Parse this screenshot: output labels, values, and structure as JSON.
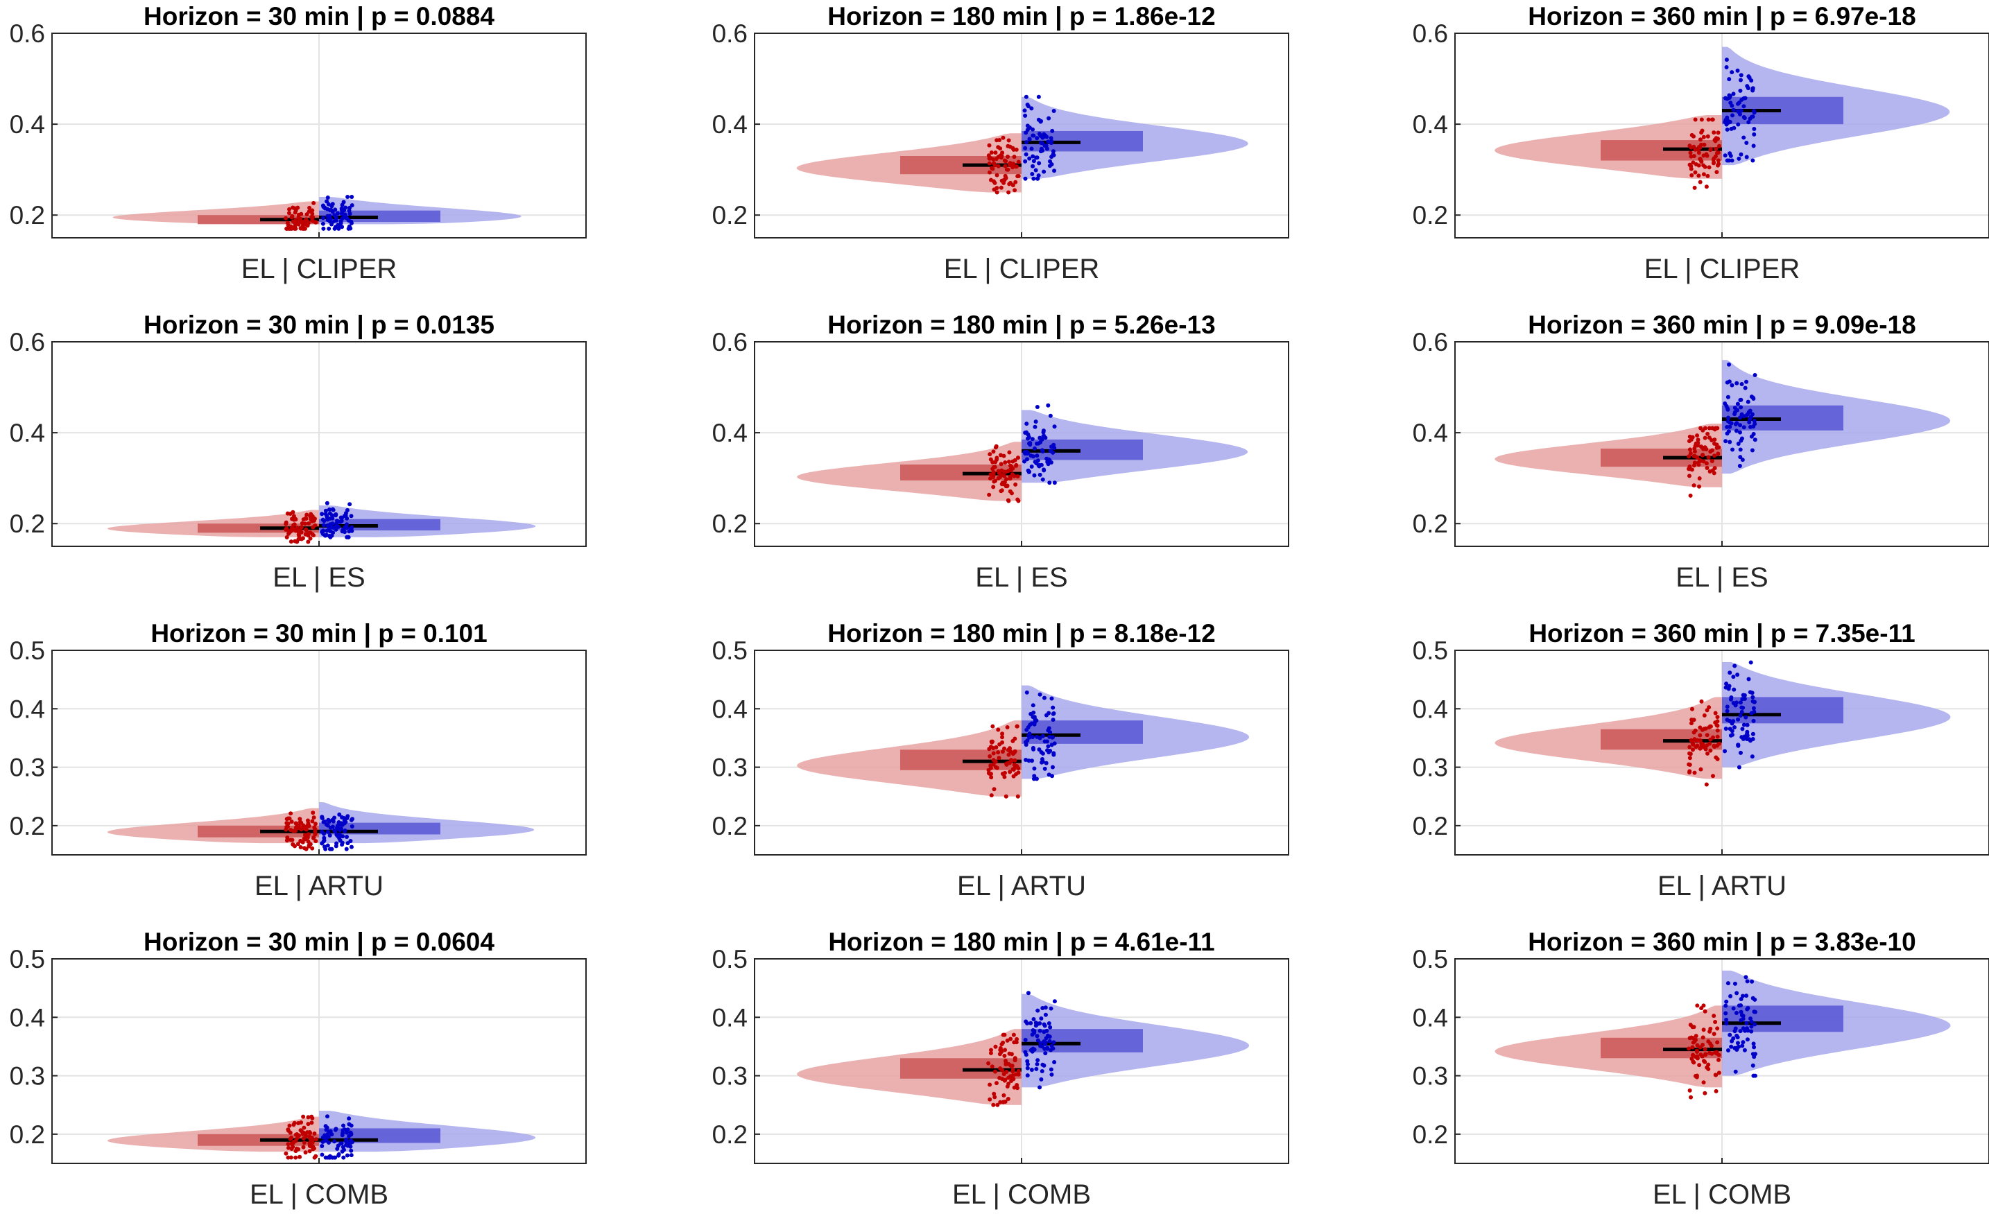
{
  "colors": {
    "el": "#c00000",
    "el_violin": "#e8a3a3",
    "el_box": "#cd5c5c",
    "other": "#0000c8",
    "other_violin": "#a8a8ec",
    "other_box": "#5c5cd6",
    "median": "#000000",
    "grid": "#e3e3e3",
    "axis": "#262626"
  },
  "chart_data": [
    {
      "type": "violin",
      "panel": "r1c1",
      "title": "Horizon = 30 min |  p = 0.0884",
      "xlabel": "EL | CLIPER",
      "ylim": [
        0.15,
        0.6
      ],
      "yticks": [
        0.2,
        0.4,
        0.6
      ],
      "ytick_labels": [
        "0.2",
        "0.4",
        "0.6"
      ],
      "grid": true,
      "series": [
        {
          "name": "EL",
          "side": "left",
          "median": 0.19,
          "q1": 0.18,
          "q3": 0.2,
          "min": 0.17,
          "max": 0.23,
          "kde_min": 0.18,
          "kde_max": 0.23,
          "mode": 0.19
        },
        {
          "name": "CLIPER",
          "side": "right",
          "median": 0.195,
          "q1": 0.185,
          "q3": 0.21,
          "min": 0.17,
          "max": 0.24,
          "kde_min": 0.18,
          "kde_max": 0.24,
          "mode": 0.19
        }
      ]
    },
    {
      "type": "violin",
      "panel": "r1c2",
      "title": "Horizon = 180 min |  p = 1.86e-12",
      "xlabel": "EL | CLIPER",
      "ylim": [
        0.15,
        0.6
      ],
      "yticks": [
        0.2,
        0.4,
        0.6
      ],
      "ytick_labels": [
        "0.2",
        "0.4",
        "0.6"
      ],
      "grid": true,
      "series": [
        {
          "name": "EL",
          "side": "left",
          "median": 0.31,
          "q1": 0.29,
          "q3": 0.33,
          "min": 0.25,
          "max": 0.37,
          "kde_min": 0.25,
          "kde_max": 0.38,
          "mode": 0.3
        },
        {
          "name": "CLIPER",
          "side": "right",
          "median": 0.36,
          "q1": 0.34,
          "q3": 0.385,
          "min": 0.28,
          "max": 0.46,
          "kde_min": 0.28,
          "kde_max": 0.46,
          "mode": 0.355
        }
      ]
    },
    {
      "type": "violin",
      "panel": "r1c3",
      "title": "Horizon = 360 min |  p = 6.97e-18",
      "xlabel": "EL | CLIPER",
      "ylim": [
        0.15,
        0.6
      ],
      "yticks": [
        0.2,
        0.4,
        0.6
      ],
      "ytick_labels": [
        "0.2",
        "0.4",
        "0.6"
      ],
      "grid": true,
      "series": [
        {
          "name": "EL",
          "side": "left",
          "median": 0.345,
          "q1": 0.32,
          "q3": 0.365,
          "min": 0.26,
          "max": 0.41,
          "kde_min": 0.28,
          "kde_max": 0.42,
          "mode": 0.34
        },
        {
          "name": "CLIPER",
          "side": "right",
          "median": 0.43,
          "q1": 0.4,
          "q3": 0.46,
          "min": 0.32,
          "max": 0.6,
          "kde_min": 0.31,
          "kde_max": 0.57,
          "mode": 0.425
        }
      ]
    },
    {
      "type": "violin",
      "panel": "r2c1",
      "title": "Horizon = 30 min |  p = 0.0135",
      "xlabel": "EL | ES",
      "ylim": [
        0.15,
        0.6
      ],
      "yticks": [
        0.2,
        0.4,
        0.6
      ],
      "ytick_labels": [
        "0.2",
        "0.4",
        "0.6"
      ],
      "grid": true,
      "series": [
        {
          "name": "EL",
          "side": "left",
          "median": 0.19,
          "q1": 0.18,
          "q3": 0.2,
          "min": 0.16,
          "max": 0.23,
          "kde_min": 0.17,
          "kde_max": 0.23,
          "mode": 0.185
        },
        {
          "name": "ES",
          "side": "right",
          "median": 0.195,
          "q1": 0.185,
          "q3": 0.21,
          "min": 0.17,
          "max": 0.245,
          "kde_min": 0.17,
          "kde_max": 0.24,
          "mode": 0.19
        }
      ]
    },
    {
      "type": "violin",
      "panel": "r2c2",
      "title": "Horizon = 180 min |  p = 5.26e-13",
      "xlabel": "EL | ES",
      "ylim": [
        0.15,
        0.6
      ],
      "yticks": [
        0.2,
        0.4,
        0.6
      ],
      "ytick_labels": [
        "0.2",
        "0.4",
        "0.6"
      ],
      "grid": true,
      "series": [
        {
          "name": "EL",
          "side": "left",
          "median": 0.31,
          "q1": 0.295,
          "q3": 0.33,
          "min": 0.25,
          "max": 0.37,
          "kde_min": 0.25,
          "kde_max": 0.38,
          "mode": 0.3
        },
        {
          "name": "ES",
          "side": "right",
          "median": 0.36,
          "q1": 0.34,
          "q3": 0.385,
          "min": 0.29,
          "max": 0.46,
          "kde_min": 0.29,
          "kde_max": 0.45,
          "mode": 0.355
        }
      ]
    },
    {
      "type": "violin",
      "panel": "r2c3",
      "title": "Horizon = 360 min |  p = 9.09e-18",
      "xlabel": "EL | ES",
      "ylim": [
        0.15,
        0.6
      ],
      "yticks": [
        0.2,
        0.4,
        0.6
      ],
      "ytick_labels": [
        "0.2",
        "0.4",
        "0.6"
      ],
      "grid": true,
      "series": [
        {
          "name": "EL",
          "side": "left",
          "median": 0.345,
          "q1": 0.325,
          "q3": 0.365,
          "min": 0.26,
          "max": 0.41,
          "kde_min": 0.28,
          "kde_max": 0.42,
          "mode": 0.34
        },
        {
          "name": "ES",
          "side": "right",
          "median": 0.43,
          "q1": 0.405,
          "q3": 0.46,
          "min": 0.32,
          "max": 0.6,
          "kde_min": 0.31,
          "kde_max": 0.56,
          "mode": 0.425
        }
      ]
    },
    {
      "type": "violin",
      "panel": "r3c1",
      "title": "Horizon = 30 min |  p = 0.101",
      "xlabel": "EL | ARTU",
      "ylim": [
        0.15,
        0.5
      ],
      "yticks": [
        0.2,
        0.3,
        0.4,
        0.5
      ],
      "ytick_labels": [
        "0.2",
        "0.3",
        "0.4",
        "0.5"
      ],
      "grid": true,
      "series": [
        {
          "name": "EL",
          "side": "left",
          "median": 0.19,
          "q1": 0.18,
          "q3": 0.2,
          "min": 0.16,
          "max": 0.23,
          "kde_min": 0.17,
          "kde_max": 0.23,
          "mode": 0.185
        },
        {
          "name": "ARTU",
          "side": "right",
          "median": 0.19,
          "q1": 0.185,
          "q3": 0.205,
          "min": 0.16,
          "max": 0.24,
          "kde_min": 0.17,
          "kde_max": 0.24,
          "mode": 0.19
        }
      ]
    },
    {
      "type": "violin",
      "panel": "r3c2",
      "title": "Horizon = 180 min |  p = 8.18e-12",
      "xlabel": "EL | ARTU",
      "ylim": [
        0.15,
        0.5
      ],
      "yticks": [
        0.2,
        0.3,
        0.4,
        0.5
      ],
      "ytick_labels": [
        "0.2",
        "0.3",
        "0.4",
        "0.5"
      ],
      "grid": true,
      "series": [
        {
          "name": "EL",
          "side": "left",
          "median": 0.31,
          "q1": 0.295,
          "q3": 0.33,
          "min": 0.25,
          "max": 0.37,
          "kde_min": 0.25,
          "kde_max": 0.38,
          "mode": 0.3
        },
        {
          "name": "ARTU",
          "side": "right",
          "median": 0.355,
          "q1": 0.34,
          "q3": 0.38,
          "min": 0.28,
          "max": 0.44,
          "kde_min": 0.28,
          "kde_max": 0.44,
          "mode": 0.35
        }
      ]
    },
    {
      "type": "violin",
      "panel": "r3c3",
      "title": "Horizon = 360 min |  p = 7.35e-11",
      "xlabel": "EL | ARTU",
      "ylim": [
        0.15,
        0.5
      ],
      "yticks": [
        0.2,
        0.3,
        0.4,
        0.5
      ],
      "ytick_labels": [
        "0.2",
        "0.3",
        "0.4",
        "0.5"
      ],
      "grid": true,
      "series": [
        {
          "name": "EL",
          "side": "left",
          "median": 0.345,
          "q1": 0.33,
          "q3": 0.365,
          "min": 0.26,
          "max": 0.42,
          "kde_min": 0.28,
          "kde_max": 0.42,
          "mode": 0.34
        },
        {
          "name": "ARTU",
          "side": "right",
          "median": 0.39,
          "q1": 0.375,
          "q3": 0.42,
          "min": 0.3,
          "max": 0.48,
          "kde_min": 0.3,
          "kde_max": 0.48,
          "mode": 0.385
        }
      ]
    },
    {
      "type": "violin",
      "panel": "r4c1",
      "title": "Horizon = 30 min |  p = 0.0604",
      "xlabel": "EL | COMB",
      "ylim": [
        0.15,
        0.5
      ],
      "yticks": [
        0.2,
        0.3,
        0.4,
        0.5
      ],
      "ytick_labels": [
        "0.2",
        "0.3",
        "0.4",
        "0.5"
      ],
      "grid": true,
      "series": [
        {
          "name": "EL",
          "side": "left",
          "median": 0.19,
          "q1": 0.18,
          "q3": 0.2,
          "min": 0.16,
          "max": 0.23,
          "kde_min": 0.17,
          "kde_max": 0.23,
          "mode": 0.185
        },
        {
          "name": "COMB",
          "side": "right",
          "median": 0.19,
          "q1": 0.185,
          "q3": 0.21,
          "min": 0.16,
          "max": 0.24,
          "kde_min": 0.17,
          "kde_max": 0.24,
          "mode": 0.19
        }
      ]
    },
    {
      "type": "violin",
      "panel": "r4c2",
      "title": "Horizon = 180 min |  p = 4.61e-11",
      "xlabel": "EL | COMB",
      "ylim": [
        0.15,
        0.5
      ],
      "yticks": [
        0.2,
        0.3,
        0.4,
        0.5
      ],
      "ytick_labels": [
        "0.2",
        "0.3",
        "0.4",
        "0.5"
      ],
      "grid": true,
      "series": [
        {
          "name": "EL",
          "side": "left",
          "median": 0.31,
          "q1": 0.295,
          "q3": 0.33,
          "min": 0.25,
          "max": 0.37,
          "kde_min": 0.25,
          "kde_max": 0.38,
          "mode": 0.3
        },
        {
          "name": "COMB",
          "side": "right",
          "median": 0.355,
          "q1": 0.34,
          "q3": 0.38,
          "min": 0.28,
          "max": 0.45,
          "kde_min": 0.28,
          "kde_max": 0.44,
          "mode": 0.35
        }
      ]
    },
    {
      "type": "violin",
      "panel": "r4c3",
      "title": "Horizon = 360 min |  p = 3.83e-10",
      "xlabel": "EL | COMB",
      "ylim": [
        0.15,
        0.5
      ],
      "yticks": [
        0.2,
        0.3,
        0.4,
        0.5
      ],
      "ytick_labels": [
        "0.2",
        "0.3",
        "0.4",
        "0.5"
      ],
      "grid": true,
      "series": [
        {
          "name": "EL",
          "side": "left",
          "median": 0.345,
          "q1": 0.33,
          "q3": 0.365,
          "min": 0.26,
          "max": 0.42,
          "kde_min": 0.28,
          "kde_max": 0.42,
          "mode": 0.34
        },
        {
          "name": "COMB",
          "side": "right",
          "median": 0.39,
          "q1": 0.375,
          "q3": 0.42,
          "min": 0.3,
          "max": 0.49,
          "kde_min": 0.3,
          "kde_max": 0.48,
          "mode": 0.385
        }
      ]
    }
  ]
}
